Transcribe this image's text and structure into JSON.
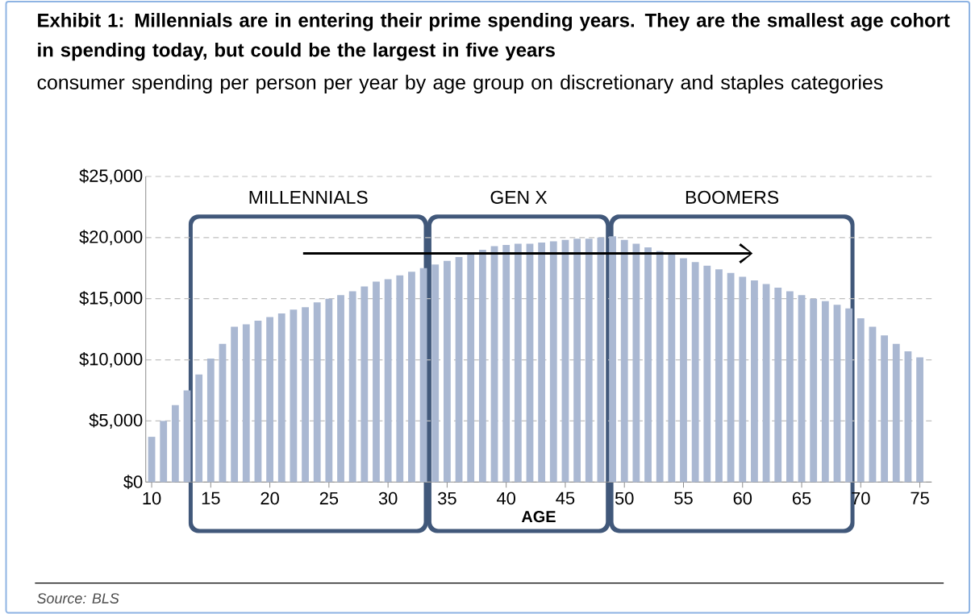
{
  "chart_data": {
    "type": "bar",
    "title": "Exhibit 1: Millennials are in entering their prime spending years. They are the smallest age cohort in spending today, but could be the largest in five years",
    "subtitle": "consumer spending per person per year by age group on discretionary and staples categories",
    "xlabel": "AGE",
    "annotations": [
      "MILLENNIALS",
      "GEN X",
      "BOOMERS",
      "Source: BLS"
    ],
    "x": [
      10,
      11,
      12,
      13,
      14,
      15,
      16,
      17,
      18,
      19,
      20,
      21,
      22,
      23,
      24,
      25,
      26,
      27,
      28,
      29,
      30,
      31,
      32,
      33,
      34,
      35,
      36,
      37,
      38,
      39,
      40,
      41,
      42,
      43,
      44,
      45,
      46,
      47,
      48,
      49,
      50,
      51,
      52,
      53,
      54,
      55,
      56,
      57,
      58,
      59,
      60,
      61,
      62,
      63,
      64,
      65,
      66,
      67,
      68,
      69,
      70,
      71,
      72,
      73,
      74,
      75
    ],
    "values": [
      3700,
      5000,
      6300,
      7500,
      8800,
      10100,
      11300,
      12700,
      12900,
      13200,
      13500,
      13800,
      14100,
      14300,
      14700,
      15000,
      15300,
      15600,
      16000,
      16400,
      16600,
      16900,
      17200,
      17500,
      17800,
      18100,
      18400,
      18600,
      19000,
      19300,
      19400,
      19500,
      19500,
      19600,
      19700,
      19800,
      19900,
      19900,
      20000,
      20100,
      19800,
      19500,
      19200,
      18900,
      18600,
      18300,
      18000,
      17700,
      17400,
      17100,
      16800,
      16500,
      16200,
      15900,
      15600,
      15300,
      15000,
      14800,
      14500,
      14200,
      13400,
      12700,
      12000,
      11300,
      10700,
      10200
    ],
    "color": "#aab8d2",
    "xlim": [
      9.5,
      76
    ],
    "xticks": [
      10,
      15,
      20,
      25,
      30,
      35,
      40,
      45,
      50,
      55,
      60,
      65,
      70,
      75
    ],
    "ylim": [
      0,
      25000
    ],
    "yticks": [
      {
        "value": 0,
        "label": "$0"
      },
      {
        "value": 5000,
        "label": "$5,000"
      },
      {
        "value": 10000,
        "label": "$10,000"
      },
      {
        "value": 15000,
        "label": "$15,000"
      },
      {
        "value": 20000,
        "label": "$20,000"
      },
      {
        "value": 25000,
        "label": "$25,000"
      }
    ],
    "grid": "y"
  }
}
